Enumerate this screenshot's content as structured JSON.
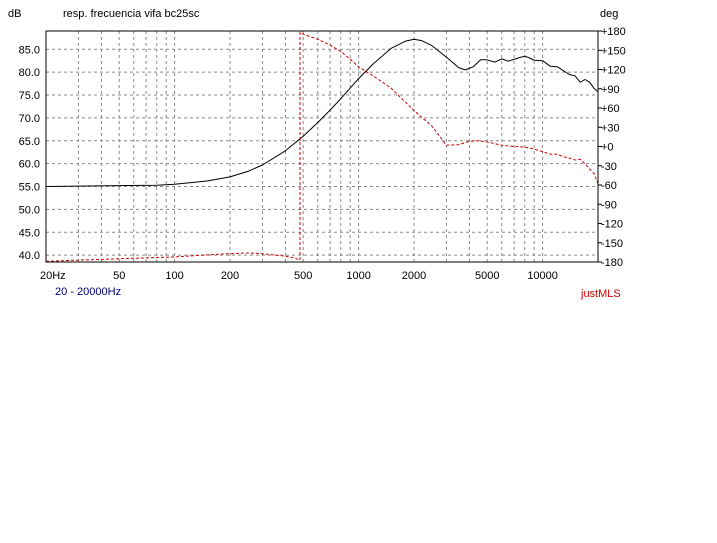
{
  "chart_data": {
    "type": "line",
    "title": "resp. frecuencia vifa bc25sc",
    "x_scale": "log",
    "xlim": [
      20,
      20000
    ],
    "x_ticks": [
      20,
      50,
      100,
      200,
      500,
      1000,
      2000,
      5000,
      10000
    ],
    "x_tick_labels": [
      "20Hz",
      "50",
      "100",
      "200",
      "500",
      "1000",
      "2000",
      "5000",
      "10000"
    ],
    "y_left_label": "dB",
    "y_left_lim": [
      38.5,
      89
    ],
    "y_left_ticks": [
      40,
      45,
      50,
      55,
      60,
      65,
      70,
      75,
      80,
      85
    ],
    "y_left_tick_labels": [
      "40.0",
      "45.0",
      "50.0",
      "55.0",
      "60.0",
      "65.0",
      "70.0",
      "75.0",
      "80.0",
      "85.0"
    ],
    "y_right_label": "deg",
    "y_right_lim": [
      -180,
      180
    ],
    "y_right_ticks": [
      180,
      150,
      120,
      90,
      60,
      30,
      0,
      -30,
      -60,
      -90,
      -120,
      -150,
      -180
    ],
    "y_right_tick_labels": [
      "+180",
      "+150",
      "+120",
      "+90",
      "+60",
      "+30",
      "+0",
      "-30",
      "-60",
      "-90",
      "-120",
      "-150",
      "-180"
    ],
    "grid": true,
    "series": [
      {
        "axis": "left",
        "color": "#000000",
        "style": "solid",
        "x": [
          20,
          30,
          50,
          80,
          100,
          150,
          200,
          250,
          300,
          400,
          500,
          600,
          700,
          800,
          1000,
          1200,
          1500,
          1800,
          2000,
          2200,
          2500,
          3000,
          3500,
          3800,
          4200,
          4600,
          5000,
          5500,
          6000,
          6500,
          7000,
          7500,
          8000,
          8500,
          9000,
          10000,
          11000,
          12000,
          13000,
          14000,
          15000,
          16000,
          17000,
          18000,
          19000,
          20000
        ],
        "y": [
          55,
          55.1,
          55.2,
          55.3,
          55.5,
          56.2,
          57.1,
          58.3,
          59.7,
          62.8,
          66.0,
          69.0,
          71.7,
          74.2,
          78.6,
          81.8,
          85.2,
          86.8,
          87.2,
          86.9,
          85.8,
          83.3,
          81.0,
          80.5,
          81.2,
          82.7,
          82.7,
          82.2,
          82.9,
          82.4,
          82.8,
          83.2,
          83.5,
          83.1,
          82.6,
          82.5,
          81.3,
          81.2,
          80.3,
          79.5,
          79.2,
          77.8,
          78.4,
          77.8,
          76.5,
          75.7
        ]
      },
      {
        "axis": "right",
        "color": "#cc0000",
        "style": "dashed",
        "x": [
          20,
          30,
          50,
          80,
          100,
          150,
          200,
          250,
          300,
          400,
          450,
          480,
          480,
          500,
          600,
          700,
          800,
          900,
          1000,
          1200,
          1500,
          2000,
          2500,
          3000,
          3500,
          4000,
          4500,
          5000,
          6000,
          7000,
          8000,
          9000,
          10000,
          11000,
          12000,
          13000,
          14000,
          15000,
          16000,
          17000,
          18000,
          19000,
          20000
        ],
        "y": [
          -179,
          -177,
          -175,
          -173,
          -172,
          -169,
          -167,
          -166,
          -167,
          -171,
          -174,
          -177,
          178,
          175,
          167,
          158,
          148,
          136,
          124,
          110,
          91,
          56,
          32,
          2,
          3,
          8,
          9,
          7,
          2,
          0,
          -1,
          -4,
          -8,
          -12,
          -12,
          -16,
          -18,
          -21,
          -20,
          -27,
          -35,
          -42,
          -58
        ]
      }
    ]
  },
  "footer": {
    "range_start": "20",
    "range_sep": "-",
    "range_end": "20000",
    "range_unit": "Hz",
    "brand": "justMLS"
  },
  "colors": {
    "magnitude": "#000000",
    "phase": "#cc0000",
    "range_text": "#000080",
    "brand": "#cc0000",
    "grid": "#8a8a8a"
  }
}
